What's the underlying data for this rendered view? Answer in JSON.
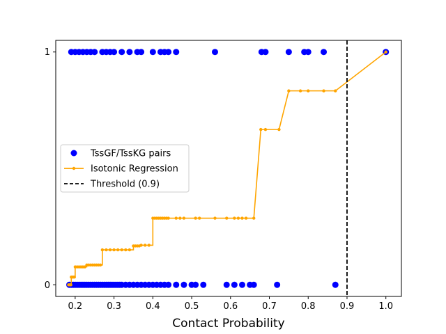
{
  "chart_data": {
    "type": "scatter",
    "title": "",
    "xlabel": "Contact Probability",
    "ylabel": "",
    "xlim": [
      0.15,
      1.04
    ],
    "ylim": [
      -0.05,
      1.05
    ],
    "xticks": [
      0.2,
      0.3,
      0.4,
      0.5,
      0.6,
      0.7,
      0.8,
      0.9,
      1.0
    ],
    "xtick_labels": [
      "0.2",
      "0.3",
      "0.4",
      "0.5",
      "0.6",
      "0.7",
      "0.8",
      "0.9",
      "1.0"
    ],
    "yticks": [
      0,
      1
    ],
    "ytick_labels": [
      "0",
      "1"
    ],
    "grid": false,
    "legend_position": "center-left",
    "series": [
      {
        "name": "TssGF/TssKG pairs",
        "kind": "scatter",
        "color": "#0000ff",
        "points_y1": [
          0.19,
          0.2,
          0.21,
          0.22,
          0.23,
          0.24,
          0.25,
          0.27,
          0.28,
          0.29,
          0.3,
          0.32,
          0.34,
          0.36,
          0.37,
          0.4,
          0.42,
          0.43,
          0.44,
          0.46,
          0.56,
          0.68,
          0.69,
          0.75,
          0.79,
          0.8,
          0.84,
          1.0
        ],
        "points_y0": [
          0.185,
          0.19,
          0.195,
          0.2,
          0.205,
          0.21,
          0.215,
          0.22,
          0.225,
          0.23,
          0.235,
          0.24,
          0.245,
          0.25,
          0.255,
          0.26,
          0.265,
          0.27,
          0.275,
          0.28,
          0.285,
          0.29,
          0.295,
          0.3,
          0.305,
          0.31,
          0.315,
          0.32,
          0.33,
          0.34,
          0.35,
          0.36,
          0.37,
          0.38,
          0.39,
          0.4,
          0.41,
          0.42,
          0.43,
          0.44,
          0.46,
          0.48,
          0.5,
          0.51,
          0.53,
          0.59,
          0.61,
          0.63,
          0.65,
          0.66,
          0.72,
          0.87
        ]
      },
      {
        "name": "Isotonic Regression",
        "kind": "step-line",
        "color": "#ffa500",
        "x": [
          0.183,
          0.19,
          0.19,
          0.2,
          0.2,
          0.23,
          0.23,
          0.27,
          0.27,
          0.35,
          0.35,
          0.37,
          0.37,
          0.4,
          0.4,
          0.66,
          0.66,
          0.678,
          0.678,
          0.725,
          0.725,
          0.75,
          0.75,
          0.87,
          1.0
        ],
        "y": [
          0.0,
          0.0,
          0.033,
          0.033,
          0.077,
          0.077,
          0.085,
          0.085,
          0.15,
          0.15,
          0.167,
          0.167,
          0.17,
          0.17,
          0.286,
          0.286,
          0.286,
          0.667,
          0.667,
          0.667,
          0.667,
          0.833,
          0.833,
          0.833,
          1.0
        ],
        "marker_x": [
          0.183,
          0.186,
          0.189,
          0.19,
          0.192,
          0.195,
          0.198,
          0.2,
          0.205,
          0.21,
          0.215,
          0.22,
          0.225,
          0.23,
          0.235,
          0.24,
          0.245,
          0.25,
          0.255,
          0.26,
          0.265,
          0.27,
          0.28,
          0.29,
          0.3,
          0.31,
          0.32,
          0.33,
          0.34,
          0.35,
          0.355,
          0.36,
          0.365,
          0.37,
          0.38,
          0.39,
          0.4,
          0.405,
          0.41,
          0.415,
          0.42,
          0.425,
          0.43,
          0.435,
          0.44,
          0.46,
          0.47,
          0.48,
          0.51,
          0.52,
          0.56,
          0.59,
          0.61,
          0.62,
          0.63,
          0.64,
          0.66,
          0.678,
          0.69,
          0.725,
          0.75,
          0.78,
          0.8,
          0.84,
          0.87,
          1.0
        ]
      },
      {
        "name": "Threshold (0.9)",
        "kind": "vline",
        "color": "#000000",
        "x": 0.9
      }
    ]
  }
}
